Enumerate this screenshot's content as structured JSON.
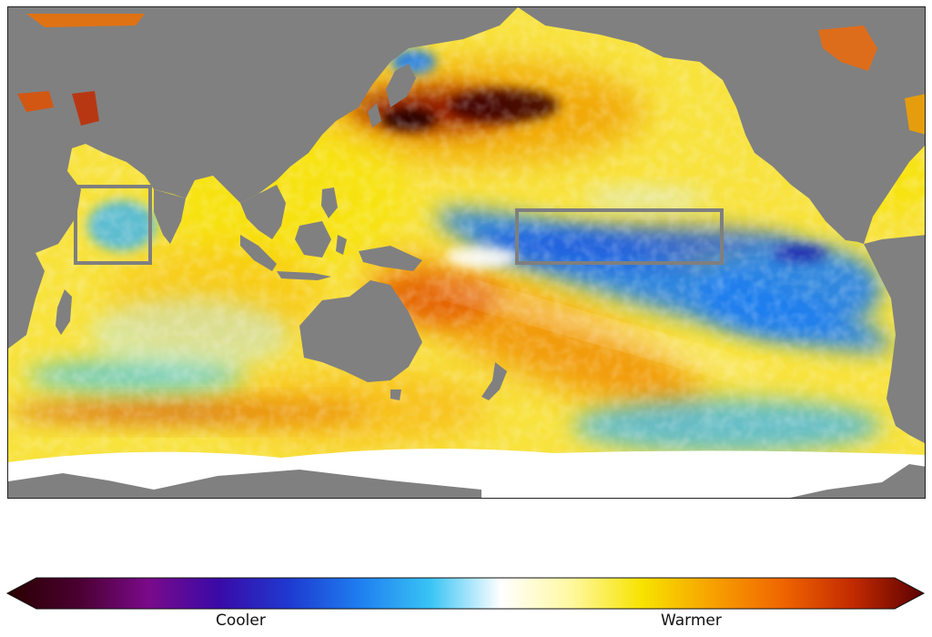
{
  "colorbar": {
    "low_label": "Cooler",
    "high_label": "Warmer",
    "colors": [
      "#2a0000",
      "#4a0030",
      "#7a0a8a",
      "#3a0aa8",
      "#1e3ad0",
      "#1f7ef0",
      "#38c4f5",
      "#ffffff",
      "#fff8a0",
      "#f7e300",
      "#f7a100",
      "#f06500",
      "#c22a00",
      "#5a0000"
    ]
  },
  "map": {
    "land_color": "#808080",
    "ice_color": "#ffffff",
    "base_ocean_color": "#f8e23c",
    "box_color": "#7f7f7f"
  }
}
